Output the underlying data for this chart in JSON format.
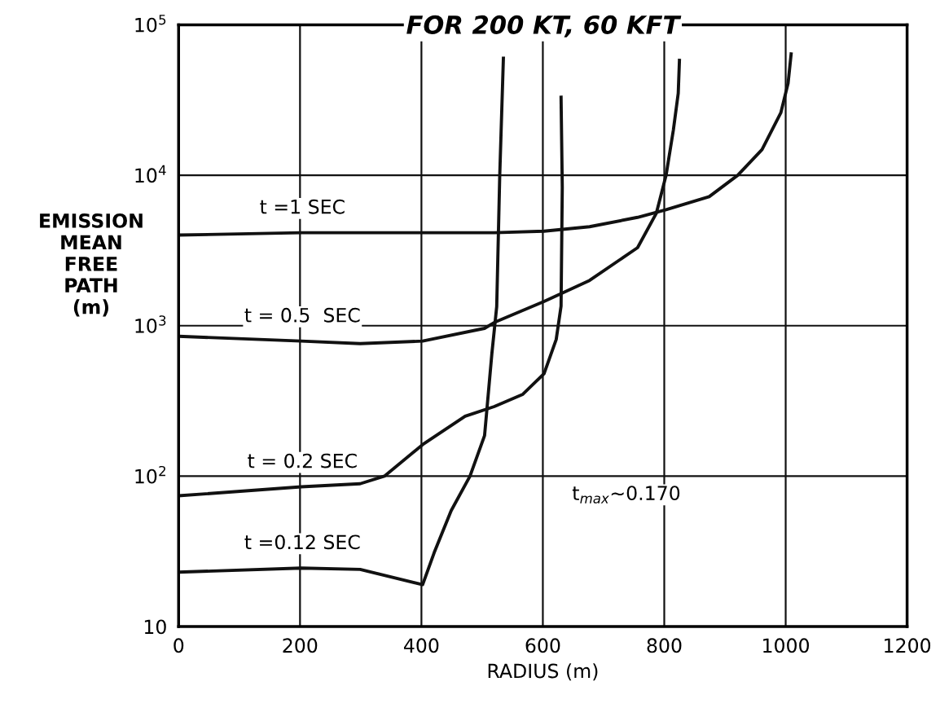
{
  "chart_data": {
    "type": "line",
    "title": "FOR 200 KT, 60 KFT",
    "xlabel": "RADIUS (m)",
    "ylabel": "EMISSION\nMEAN\nFREE\nPATH\n(m)",
    "log": "y",
    "xlim": [
      0,
      1200
    ],
    "ylim": [
      10,
      100000
    ],
    "xticks": [
      0,
      200,
      400,
      600,
      800,
      1000,
      1200
    ],
    "yticks": [
      {
        "value": 10,
        "label": "10"
      },
      {
        "value": 100,
        "label": "10$^{2}$"
      },
      {
        "value": 1000,
        "label": "10$^{3}$"
      },
      {
        "value": 10000,
        "label": "10$^{4}$"
      },
      {
        "value": 100000,
        "label": "10$^{5}$"
      }
    ],
    "grid": true,
    "legend": false,
    "marker": "none",
    "line_style": "solid",
    "annotations": [
      "t$_{max}$~0.170"
    ],
    "series": [
      {
        "name": "t =1 SEC",
        "color": "#111111",
        "x": [
          0,
          202,
          402,
          520,
          602,
          677,
          756,
          803,
          874,
          921,
          961,
          992,
          1004,
          1009
        ],
        "values": [
          4000,
          4150,
          4150,
          4150,
          4250,
          4550,
          5250,
          5900,
          7200,
          10000,
          14800,
          26000,
          41000,
          64000
        ]
      },
      {
        "name": "t = 0.5  SEC",
        "color": "#111111",
        "x": [
          0,
          202,
          299,
          402,
          504,
          520,
          602,
          677,
          756,
          787,
          803,
          815,
          823,
          825
        ],
        "values": [
          850,
          790,
          760,
          790,
          960,
          1050,
          1450,
          2000,
          3300,
          5600,
          10000,
          20000,
          35000,
          58000
        ]
      },
      {
        "name": "t = 0.2 SEC",
        "color": "#111111",
        "x": [
          0,
          202,
          299,
          339,
          402,
          472,
          520,
          567,
          602,
          622,
          630,
          632,
          630
        ],
        "values": [
          74,
          85,
          89,
          100,
          162,
          250,
          290,
          350,
          480,
          810,
          1350,
          8300,
          33000
        ]
      },
      {
        "name": "t =0.12 SEC",
        "color": "#111111",
        "x": [
          0,
          202,
          299,
          402,
          421,
          449,
          480,
          504,
          516,
          524,
          529,
          535
        ],
        "values": [
          23,
          24.5,
          24,
          19,
          31,
          59,
          100,
          186,
          650,
          1340,
          10000,
          60000
        ]
      }
    ]
  }
}
